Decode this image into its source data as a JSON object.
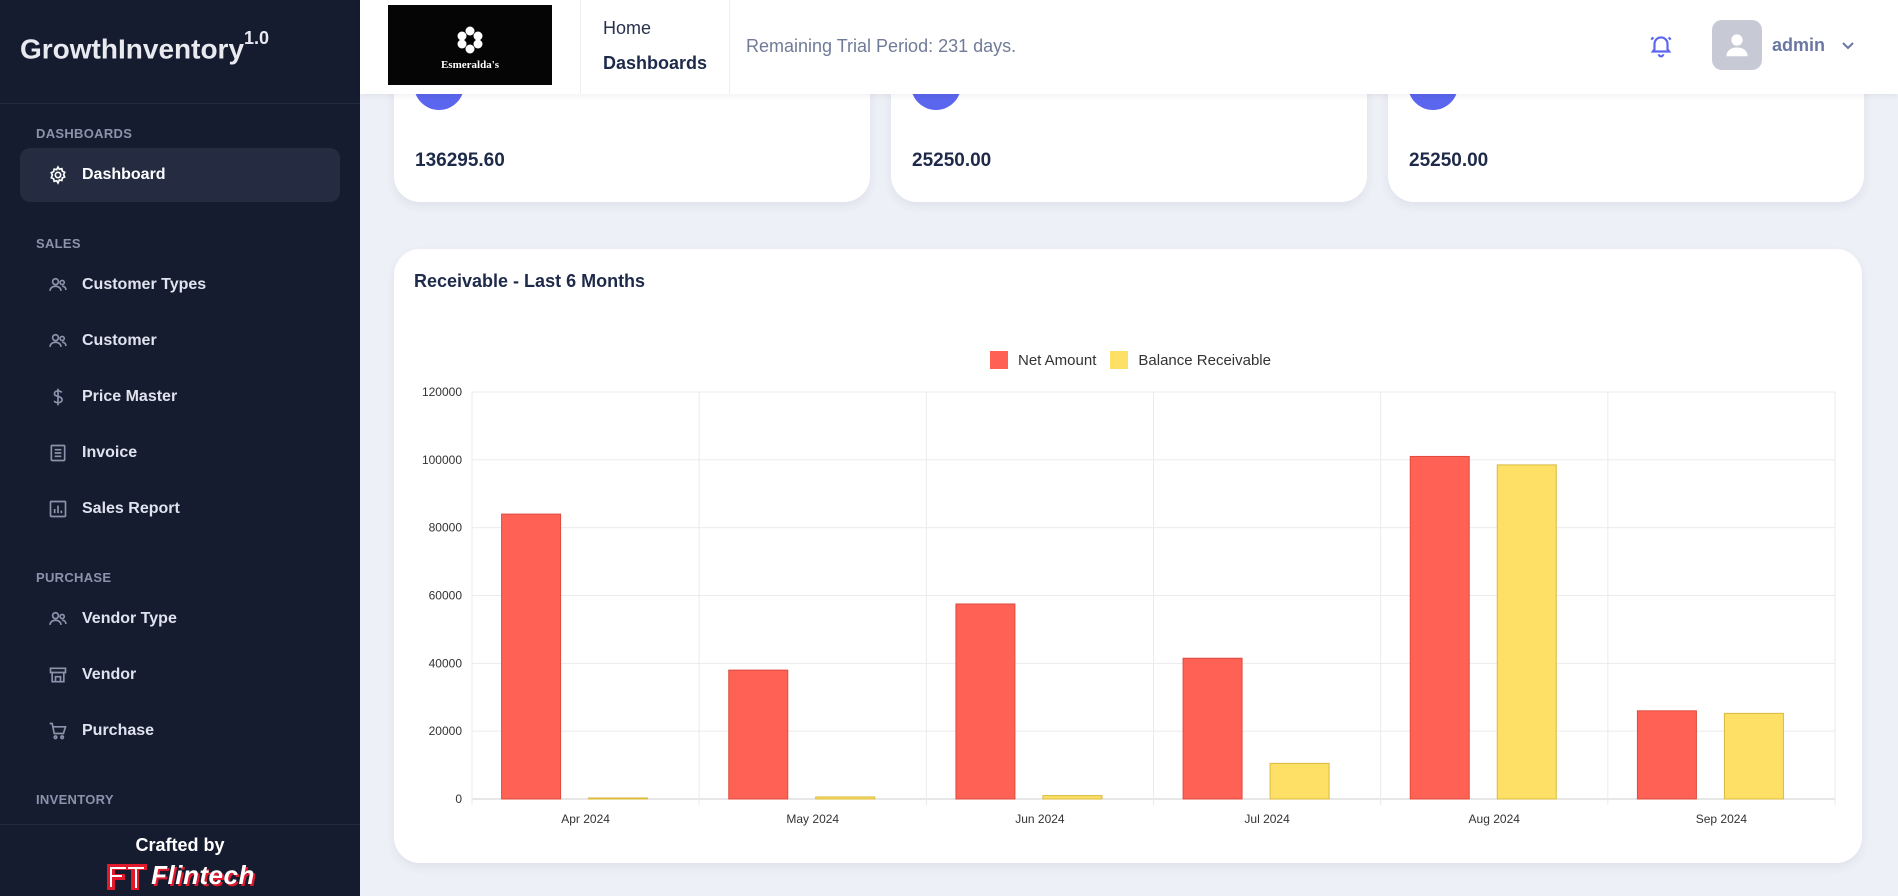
{
  "app": {
    "name": "GrowthInventory",
    "version": "1.0"
  },
  "sidebar": {
    "sections": [
      {
        "title": "DASHBOARDS",
        "items": [
          {
            "label": "Dashboard",
            "icon": "gear-icon"
          }
        ]
      },
      {
        "title": "SALES",
        "items": [
          {
            "label": "Customer Types",
            "icon": "users-icon"
          },
          {
            "label": "Customer",
            "icon": "users-icon"
          },
          {
            "label": "Price Master",
            "icon": "dollar-icon"
          },
          {
            "label": "Invoice",
            "icon": "invoice-icon"
          },
          {
            "label": "Sales Report",
            "icon": "bar-chart-icon"
          }
        ]
      },
      {
        "title": "PURCHASE",
        "items": [
          {
            "label": "Vendor Type",
            "icon": "users-icon"
          },
          {
            "label": "Vendor",
            "icon": "store-icon"
          },
          {
            "label": "Purchase",
            "icon": "cart-icon"
          }
        ]
      },
      {
        "title": "INVENTORY",
        "items": []
      }
    ],
    "footer": {
      "crafted_by": "Crafted by",
      "company": "Flintech"
    }
  },
  "topbar": {
    "logo_text": "Esmeralda's",
    "breadcrumb": {
      "home": "Home",
      "current": "Dashboards"
    },
    "trial_notice": "Remaining Trial Period: 231 days.",
    "user": {
      "name": "admin"
    }
  },
  "stats": [
    {
      "value": "136295.60"
    },
    {
      "value": "25250.00"
    },
    {
      "value": "25250.00"
    }
  ],
  "chart_card": {
    "title": "Receivable - Last 6 Months"
  },
  "chart_data": {
    "type": "bar",
    "title": "Receivable - Last 6 Months",
    "categories": [
      "Apr 2024",
      "May 2024",
      "Jun 2024",
      "Jul 2024",
      "Aug 2024",
      "Sep 2024"
    ],
    "series": [
      {
        "name": "Net Amount",
        "color": "#ff6155",
        "values": [
          84000,
          38000,
          57500,
          41500,
          101000,
          26000
        ]
      },
      {
        "name": "Balance Receivable",
        "color": "#ffe066",
        "values": [
          300,
          600,
          1000,
          10500,
          98500,
          25250
        ]
      }
    ],
    "ylim": [
      0,
      120000
    ],
    "yticks": [
      0,
      20000,
      40000,
      60000,
      80000,
      100000,
      120000
    ],
    "legend": "top-center",
    "grid": true
  }
}
